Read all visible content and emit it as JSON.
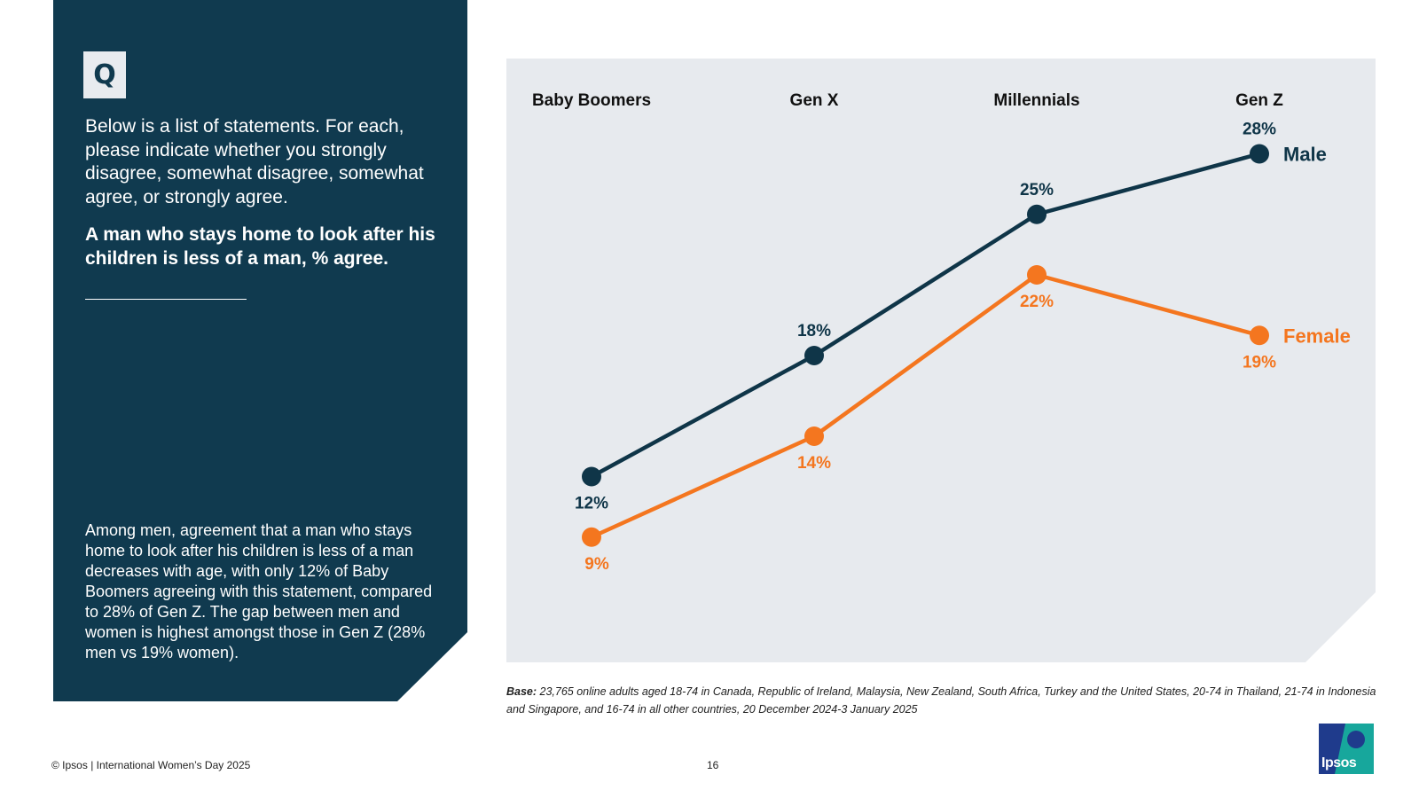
{
  "left_panel": {
    "q_label": "Q",
    "question": "Below is a list of statements. For each, please indicate whether you strongly disagree, somewhat disagree, somewhat agree, or strongly agree.",
    "statement": "A man who stays home to look after his children is less of a man, % agree.",
    "summary": "Among men, agreement that a man who stays home to look after his children is less of a man decreases with age, with only 12% of Baby Boomers agreeing with this statement, compared to 28% of Gen Z. The gap between men and women is highest amongst those in Gen Z (28% men vs 19% women)."
  },
  "chart_data": {
    "type": "line",
    "categories": [
      "Baby Boomers",
      "Gen X",
      "Millennials",
      "Gen Z"
    ],
    "series": [
      {
        "name": "Male",
        "values": [
          12,
          18,
          25,
          28
        ],
        "color": "#0f3548"
      },
      {
        "name": "Female",
        "values": [
          9,
          14,
          22,
          19
        ],
        "color": "#f4761f"
      }
    ],
    "unit": "%",
    "ylim": [
      0,
      35
    ],
    "grid": false,
    "legend": "inline at line ends"
  },
  "base_note": {
    "label": "Base:",
    "text": " 23,765 online adults aged 18-74 in Canada, Republic of Ireland, Malaysia, New Zealand, South Africa, Turkey and the United States, 20-74 in Thailand, 21-74 in Indonesia and Singapore, and 16-74 in all other countries, 20 December 2024-3 January 2025"
  },
  "footer": {
    "copyright": "© Ipsos | International Women’s Day 2025",
    "page_number": "16",
    "logo_text": "Ipsos"
  },
  "colors": {
    "panel": "#103a4f",
    "chart_bg": "#e7eaee",
    "male": "#0f3548",
    "female": "#f4761f",
    "logo_blue": "#1f3b8c",
    "logo_teal": "#17a79c"
  }
}
